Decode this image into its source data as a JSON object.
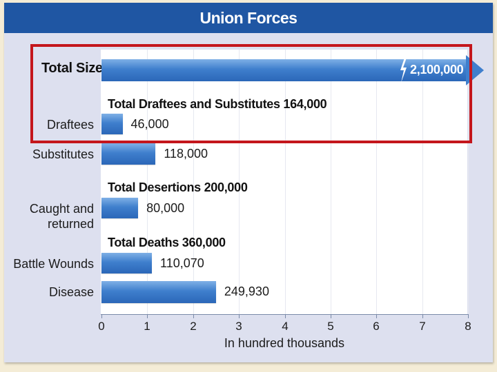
{
  "chart_data": {
    "type": "bar",
    "orientation": "horizontal",
    "title": "Union Forces",
    "xlabel": "In hundred thousands",
    "ylabel": "",
    "xlim": [
      0,
      8
    ],
    "xticks": [
      "0",
      "1",
      "2",
      "3",
      "4",
      "5",
      "6",
      "7",
      "8"
    ],
    "grid": false,
    "total": {
      "label": "Total Size",
      "value": 2100000,
      "value_label": "2,100,000"
    },
    "groups": [
      {
        "title": "Total Draftees and Substitutes 164,000",
        "items": [
          {
            "category": "Draftees",
            "value": 46000,
            "value_label": "46,000"
          },
          {
            "category": "Substitutes",
            "value": 118000,
            "value_label": "118,000"
          }
        ]
      },
      {
        "title": "Total Desertions 200,000",
        "items": [
          {
            "category": "Caught and returned",
            "lines": [
              "Caught and",
              "returned"
            ],
            "value": 80000,
            "value_label": "80,000"
          }
        ]
      },
      {
        "title": "Total Deaths 360,000",
        "items": [
          {
            "category": "Battle Wounds",
            "value": 110070,
            "value_label": "110,070"
          },
          {
            "category": "Disease",
            "value": 249930,
            "value_label": "249,930"
          }
        ]
      }
    ],
    "highlight_color": "#c4161c",
    "bar_color": "#3f7fcd",
    "header_color": "#1f56a3"
  }
}
